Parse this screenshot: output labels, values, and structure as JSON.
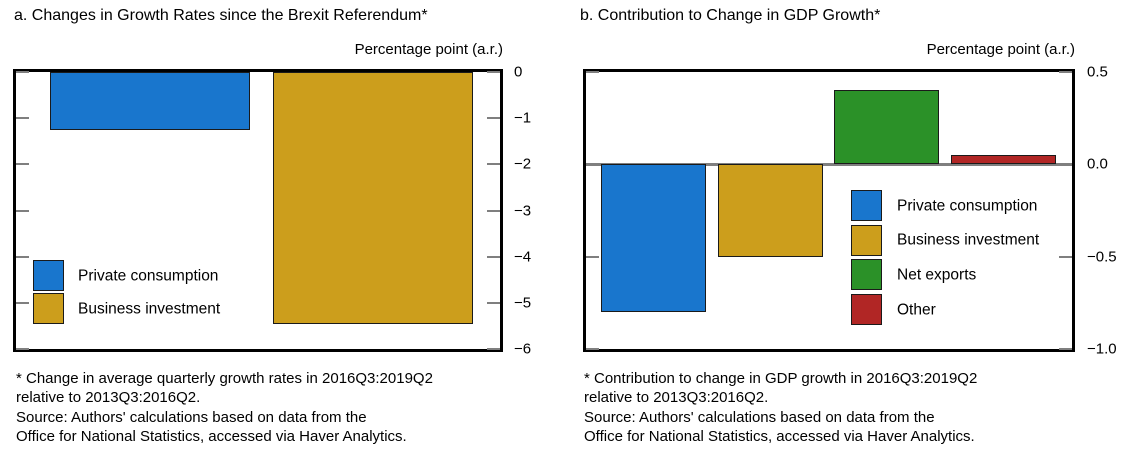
{
  "page": {
    "background_color": "#ffffff",
    "text_color": "#000000",
    "axis_color": "#000000",
    "tick_color": "#7f7f7f"
  },
  "colors": {
    "private_consumption": "#1976cd",
    "business_investment": "#cc9e1c",
    "net_exports": "#2b9128",
    "other": "#b12625"
  },
  "chart_data": [
    {
      "type": "bar",
      "panel": "a",
      "title": "a. Changes in Growth Rates since the Brexit Referendum*",
      "unit_label": "Percentage point (a.r.)",
      "xlabel": "",
      "ylabel": "Percentage point (a.r.)",
      "categories": [
        "Private consumption",
        "Business investment"
      ],
      "values": [
        -1.25,
        -5.45
      ],
      "bar_colors": [
        "#1976cd",
        "#cc9e1c"
      ],
      "ylim": [
        -6,
        0.0
      ],
      "yticks": [
        0,
        -1,
        -2,
        -3,
        -4,
        -5,
        -6
      ],
      "ytick_labels": [
        "0",
        "−1",
        "−2",
        "−3",
        "−4",
        "−5",
        "−6"
      ],
      "grid": false,
      "legend_position": "inside bottom-left",
      "legend": [
        {
          "label": "Private consumption",
          "color": "#1976cd"
        },
        {
          "label": "Business investment",
          "color": "#cc9e1c"
        }
      ],
      "footnote": "* Change in average quarterly growth rates in 2016Q3:2019Q2\nrelative to 2013Q3:2016Q2.\nSource: Authors' calculations based on data from the\nOffice for National Statistics, accessed via Haver Analytics."
    },
    {
      "type": "bar",
      "panel": "b",
      "title": "b. Contribution to Change in GDP Growth*",
      "unit_label": "Percentage point (a.r.)",
      "xlabel": "",
      "ylabel": "Percentage point (a.r.)",
      "categories": [
        "Private consumption",
        "Business investment",
        "Net exports",
        "Other"
      ],
      "values": [
        -0.8,
        -0.5,
        0.4,
        0.05
      ],
      "bar_colors": [
        "#1976cd",
        "#cc9e1c",
        "#2b9128",
        "#b12625"
      ],
      "ylim": [
        -1.0,
        0.5
      ],
      "yticks": [
        0.5,
        0.0,
        -0.5,
        -1.0
      ],
      "ytick_labels": [
        "0.5",
        "0.0",
        "−0.5",
        "−1.0"
      ],
      "grid": false,
      "zero_line": true,
      "legend_position": "inside middle-right",
      "legend": [
        {
          "label": "Private consumption",
          "color": "#1976cd"
        },
        {
          "label": "Business investment",
          "color": "#cc9e1c"
        },
        {
          "label": "Net exports",
          "color": "#2b9128"
        },
        {
          "label": "Other",
          "color": "#b12625"
        }
      ],
      "footnote": "* Contribution to change in GDP growth in 2016Q3:2019Q2\nrelative to 2013Q3:2016Q2.\nSource: Authors' calculations based on data from the\nOffice for National Statistics, accessed via Haver Analytics."
    }
  ]
}
